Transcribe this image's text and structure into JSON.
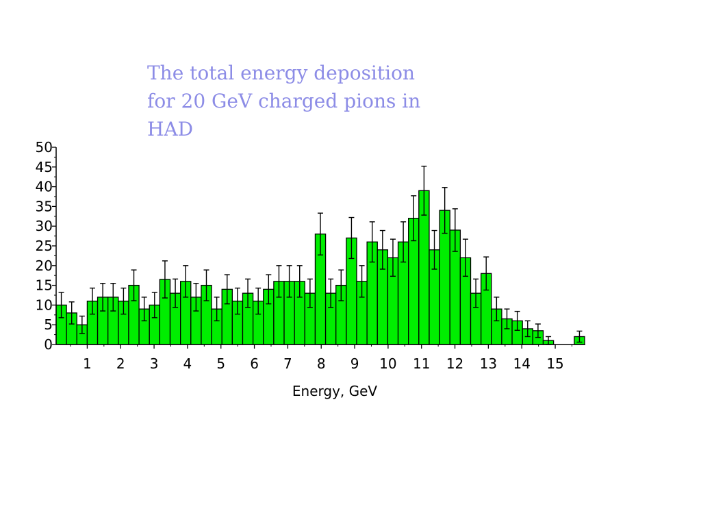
{
  "title_lines": [
    "The total energy deposition",
    "for 20 GeV charged pions in",
    "HAD"
  ],
  "colors": {
    "bar_fill": "#00ee00",
    "bar_stroke": "#000000",
    "title": "#8c8ce6"
  },
  "chart_data": {
    "type": "bar",
    "title": "The total energy deposition for 20 GeV charged pions in HAD",
    "xlabel": "Energy, GeV",
    "ylabel": "",
    "xlim": [
      0.07,
      15.9
    ],
    "ylim": [
      0,
      50
    ],
    "bin_width": 0.31,
    "x_ticks": [
      1,
      2,
      3,
      4,
      5,
      6,
      7,
      8,
      9,
      10,
      11,
      12,
      13,
      14,
      15
    ],
    "y_ticks": [
      0,
      5,
      10,
      15,
      20,
      25,
      30,
      35,
      40,
      45,
      50
    ],
    "grid": false,
    "legend": "none",
    "bins_low_edge": [
      0.07,
      0.38,
      0.69,
      1.0,
      1.31,
      1.62,
      1.93,
      2.24,
      2.55,
      2.86,
      3.17,
      3.48,
      3.79,
      4.1,
      4.41,
      4.72,
      5.03,
      5.34,
      5.65,
      5.96,
      6.27,
      6.58,
      6.89,
      7.2,
      7.51,
      7.82,
      8.13,
      8.44,
      8.75,
      9.06,
      9.37,
      9.68,
      9.99,
      10.3,
      10.61,
      10.92,
      11.23,
      11.54,
      11.85,
      12.16,
      12.47,
      12.78,
      13.09,
      13.4,
      13.71,
      14.02,
      14.33,
      14.64,
      14.95,
      15.26,
      15.57
    ],
    "values": [
      10,
      8,
      5,
      11,
      12,
      12,
      11,
      15,
      9,
      10,
      16.5,
      13,
      16,
      12,
      15,
      9,
      14,
      11,
      13,
      11,
      14,
      16,
      16,
      16,
      13,
      28,
      13,
      15,
      27,
      16,
      26,
      24,
      22,
      26,
      32,
      39,
      24,
      34,
      29,
      22,
      13,
      18,
      9,
      6.5,
      6,
      4,
      3.5,
      1,
      0,
      0,
      2
    ],
    "errors": [
      3.2,
      2.8,
      2.2,
      3.3,
      3.5,
      3.5,
      3.3,
      3.9,
      3,
      3.2,
      4.7,
      3.6,
      4,
      3.5,
      3.9,
      3,
      3.7,
      3.3,
      3.6,
      3.3,
      3.7,
      4,
      4,
      4,
      3.6,
      5.3,
      3.6,
      3.9,
      5.2,
      4,
      5.1,
      4.9,
      4.7,
      5.1,
      5.7,
      6.2,
      4.9,
      5.8,
      5.4,
      4.7,
      3.6,
      4.2,
      3,
      2.5,
      2.4,
      2,
      1.7,
      1,
      0,
      0,
      1.4
    ]
  }
}
